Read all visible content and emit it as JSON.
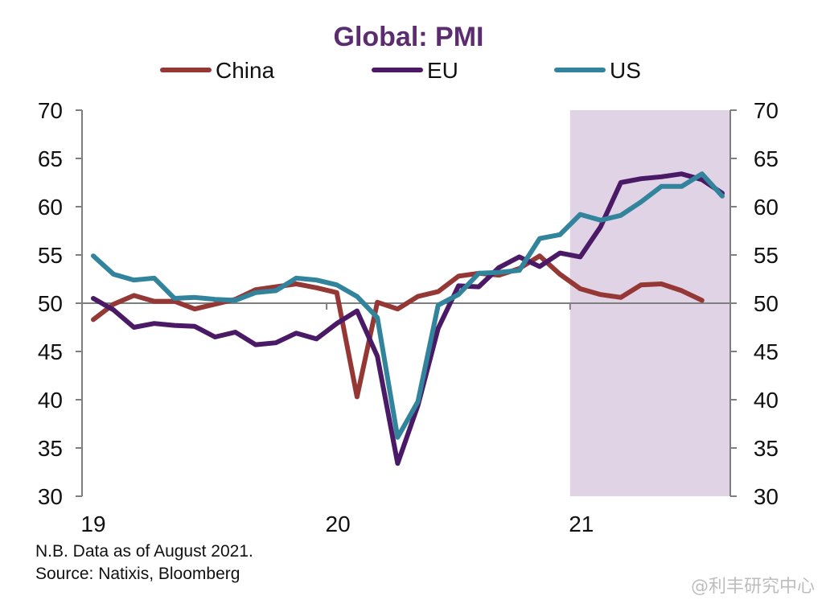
{
  "chart_data": {
    "type": "line",
    "title": "Global: PMI",
    "x_tick_labels": [
      "19",
      "20",
      "21"
    ],
    "x_range": [
      "2019-01",
      "2021-09"
    ],
    "ylim": [
      30,
      70
    ],
    "y_ticks": [
      30,
      35,
      40,
      45,
      50,
      55,
      60,
      65,
      70
    ],
    "y_axis_right": true,
    "reference_line": 50,
    "shaded_region": {
      "from": "2021-01",
      "to": "2021-09",
      "color": "#e0d3e6"
    },
    "legend_position": "top",
    "colors": {
      "title": "#5b2c6f",
      "axis": "#7f7f7f"
    },
    "x": [
      "2019-01",
      "2019-02",
      "2019-03",
      "2019-04",
      "2019-05",
      "2019-06",
      "2019-07",
      "2019-08",
      "2019-09",
      "2019-10",
      "2019-11",
      "2019-12",
      "2020-01",
      "2020-02",
      "2020-03",
      "2020-04",
      "2020-05",
      "2020-06",
      "2020-07",
      "2020-08",
      "2020-09",
      "2020-10",
      "2020-11",
      "2020-12",
      "2021-01",
      "2021-02",
      "2021-03",
      "2021-04",
      "2021-05",
      "2021-06",
      "2021-07",
      "2021-08"
    ],
    "series": [
      {
        "name": "China",
        "color": "#953735",
        "values": [
          48.3,
          49.9,
          50.8,
          50.2,
          50.2,
          49.4,
          49.9,
          50.4,
          51.4,
          51.7,
          52.0,
          51.6,
          51.1,
          40.3,
          50.1,
          49.4,
          50.7,
          51.2,
          52.8,
          53.1,
          52.9,
          53.6,
          54.9,
          53.0,
          51.5,
          50.9,
          50.6,
          51.9,
          52.0,
          51.3,
          50.3,
          null
        ]
      },
      {
        "name": "EU",
        "color": "#4b1a66",
        "values": [
          50.5,
          49.3,
          47.5,
          47.9,
          47.7,
          47.6,
          46.5,
          47.0,
          45.7,
          45.9,
          46.9,
          46.3,
          47.9,
          49.2,
          44.5,
          33.4,
          39.4,
          47.4,
          51.8,
          51.7,
          53.7,
          54.8,
          53.8,
          55.2,
          54.8,
          57.9,
          62.5,
          62.9,
          63.1,
          63.4,
          62.8,
          61.4
        ]
      },
      {
        "name": "US",
        "color": "#31849b",
        "values": [
          54.9,
          53.0,
          52.4,
          52.6,
          50.5,
          50.6,
          50.4,
          50.3,
          51.1,
          51.3,
          52.6,
          52.4,
          51.9,
          50.7,
          48.5,
          36.1,
          39.8,
          49.8,
          50.9,
          53.1,
          53.2,
          53.4,
          56.7,
          57.1,
          59.2,
          58.6,
          59.1,
          60.5,
          62.1,
          62.1,
          63.4,
          61.1
        ]
      }
    ]
  },
  "notes": {
    "line1": "N.B. Data as of August 2021.",
    "line2": "Source: Natixis, Bloomberg"
  },
  "watermark": "@利丰研究中心"
}
